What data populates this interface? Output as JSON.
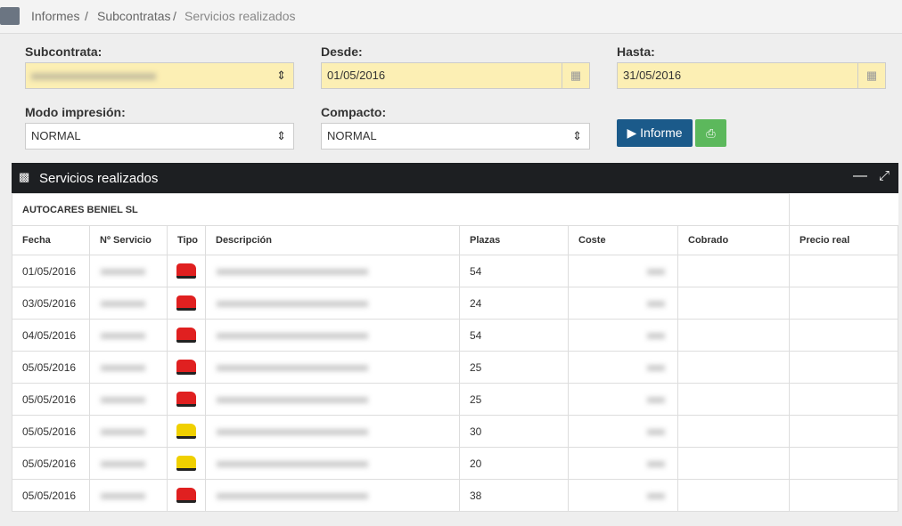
{
  "breadcrumb": [
    "Informes",
    "Subcontratas",
    "Servicios realizados"
  ],
  "form": {
    "subcontrata": {
      "label": "Subcontrata:"
    },
    "desde": {
      "label": "Desde:",
      "value": "01/05/2016"
    },
    "hasta": {
      "label": "Hasta:",
      "value": "31/05/2016"
    },
    "modo": {
      "label": "Modo impresión:",
      "value": "NORMAL"
    },
    "compacto": {
      "label": "Compacto:",
      "value": "NORMAL"
    },
    "button": "Informe"
  },
  "panel": {
    "title": "Servicios realizados"
  },
  "table": {
    "group": "AUTOCARES BENIEL SL",
    "headers": [
      "Fecha",
      "Nº Servicio",
      "Tipo",
      "Descripción",
      "Plazas",
      "Coste",
      "Cobrado",
      "Precio real"
    ],
    "rows": [
      {
        "fecha": "01/05/2016",
        "tipo_color": "#e02020",
        "plazas": "54"
      },
      {
        "fecha": "03/05/2016",
        "tipo_color": "#e02020",
        "plazas": "24"
      },
      {
        "fecha": "04/05/2016",
        "tipo_color": "#e02020",
        "plazas": "54"
      },
      {
        "fecha": "05/05/2016",
        "tipo_color": "#e02020",
        "plazas": "25"
      },
      {
        "fecha": "05/05/2016",
        "tipo_color": "#e02020",
        "plazas": "25"
      },
      {
        "fecha": "05/05/2016",
        "tipo_color": "#f0d000",
        "plazas": "30"
      },
      {
        "fecha": "05/05/2016",
        "tipo_color": "#f0d000",
        "plazas": "20"
      },
      {
        "fecha": "05/05/2016",
        "tipo_color": "#e02020",
        "plazas": "38"
      }
    ]
  }
}
